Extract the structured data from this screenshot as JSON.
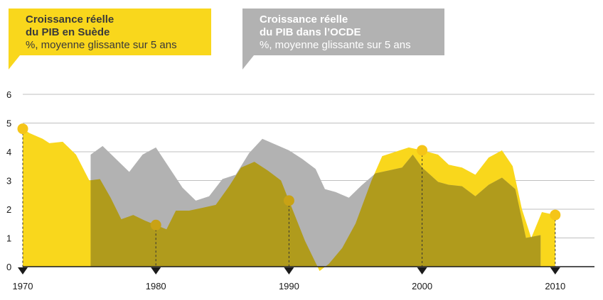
{
  "chart_data": {
    "type": "area",
    "xlim": [
      1970,
      2013
    ],
    "ylim": [
      0,
      6
    ],
    "x_ticks": [
      1970,
      1980,
      1990,
      2000,
      2010
    ],
    "y_ticks": [
      0,
      1,
      2,
      3,
      4,
      5,
      6
    ],
    "grid": "horizontal",
    "series": [
      {
        "name": "Croissance réelle du PIB en Suède",
        "subtitle": "%, moyenne glissante sur 5 ans",
        "color": "#F9D71C",
        "points": [
          [
            1970,
            4.8
          ],
          [
            1970.5,
            4.65
          ],
          [
            1971.5,
            4.45
          ],
          [
            1972,
            4.3
          ],
          [
            1973,
            4.35
          ],
          [
            1974,
            3.9
          ],
          [
            1975,
            3.0
          ],
          [
            1975.8,
            3.05
          ],
          [
            1976.6,
            2.4
          ],
          [
            1977.4,
            1.65
          ],
          [
            1978.3,
            1.8
          ],
          [
            1979.2,
            1.6
          ],
          [
            1980,
            1.45
          ],
          [
            1980.8,
            1.3
          ],
          [
            1981.5,
            1.95
          ],
          [
            1982.5,
            1.95
          ],
          [
            1983.5,
            2.05
          ],
          [
            1984.5,
            2.15
          ],
          [
            1985.5,
            2.8
          ],
          [
            1986.4,
            3.45
          ],
          [
            1987.4,
            3.65
          ],
          [
            1988.4,
            3.35
          ],
          [
            1989.4,
            3.0
          ],
          [
            1990,
            2.3
          ],
          [
            1991.2,
            0.9
          ],
          [
            1992.3,
            -0.15
          ],
          [
            1993,
            0.1
          ],
          [
            1994,
            0.65
          ],
          [
            1995,
            1.5
          ],
          [
            1996.2,
            3.0
          ],
          [
            1997,
            3.85
          ],
          [
            1998,
            4.0
          ],
          [
            1999,
            4.15
          ],
          [
            2000,
            4.05
          ],
          [
            2001.2,
            3.9
          ],
          [
            2002,
            3.55
          ],
          [
            2003,
            3.45
          ],
          [
            2004,
            3.2
          ],
          [
            2005,
            3.8
          ],
          [
            2006,
            4.05
          ],
          [
            2006.8,
            3.5
          ],
          [
            2007.5,
            2.0
          ],
          [
            2008.2,
            1.0
          ],
          [
            2009,
            1.9
          ],
          [
            2010,
            1.8
          ]
        ]
      },
      {
        "name": "Croissance réelle du PIB dans l’OCDE",
        "subtitle": "%, moyenne glissante sur 5 ans",
        "color": "#B2B2B2",
        "points": [
          [
            1975.1,
            3.9
          ],
          [
            1976,
            4.2
          ],
          [
            1977,
            3.75
          ],
          [
            1978,
            3.3
          ],
          [
            1979,
            3.9
          ],
          [
            1980,
            4.15
          ],
          [
            1981,
            3.45
          ],
          [
            1982,
            2.75
          ],
          [
            1983,
            2.3
          ],
          [
            1984,
            2.45
          ],
          [
            1985,
            3.05
          ],
          [
            1986,
            3.2
          ],
          [
            1987,
            3.95
          ],
          [
            1988,
            4.45
          ],
          [
            1989,
            4.25
          ],
          [
            1990,
            4.05
          ],
          [
            1991,
            3.75
          ],
          [
            1992,
            3.4
          ],
          [
            1992.7,
            2.7
          ],
          [
            1993.5,
            2.6
          ],
          [
            1994.5,
            2.4
          ],
          [
            1995.5,
            2.85
          ],
          [
            1996.5,
            3.25
          ],
          [
            1997.5,
            3.35
          ],
          [
            1998.5,
            3.45
          ],
          [
            1999.3,
            3.9
          ],
          [
            2000,
            3.45
          ],
          [
            2001.2,
            2.95
          ],
          [
            2002,
            2.85
          ],
          [
            2003,
            2.8
          ],
          [
            2004,
            2.45
          ],
          [
            2005,
            2.85
          ],
          [
            2006,
            3.1
          ],
          [
            2007,
            2.7
          ],
          [
            2007.8,
            1.0
          ],
          [
            2008.9,
            1.1
          ]
        ]
      }
    ],
    "markers": [
      {
        "x": 1970,
        "y": 4.8,
        "type": "yellow"
      },
      {
        "x": 1980,
        "y": 1.45,
        "type": "overlap"
      },
      {
        "x": 1990,
        "y": 2.3,
        "type": "overlap"
      },
      {
        "x": 2000,
        "y": 4.05,
        "type": "yellow"
      },
      {
        "x": 2010,
        "y": 1.8,
        "type": "yellow"
      }
    ],
    "overlap_color": "#B09B1C",
    "marker_colors": {
      "yellow": "#F5C518",
      "overlap": "#C9A215"
    }
  },
  "legend": {
    "sweden": {
      "title_line1": "Croissance réelle",
      "title_line2": "du PIB en Suède",
      "subtitle": "%, moyenne glissante sur 5 ans",
      "color": "#F9D71C"
    },
    "oecd": {
      "title_line1": "Croissance réelle",
      "title_line2": "du PIB dans l’OCDE",
      "subtitle": "%, moyenne glissante sur 5 ans",
      "color": "#B2B2B2"
    }
  }
}
